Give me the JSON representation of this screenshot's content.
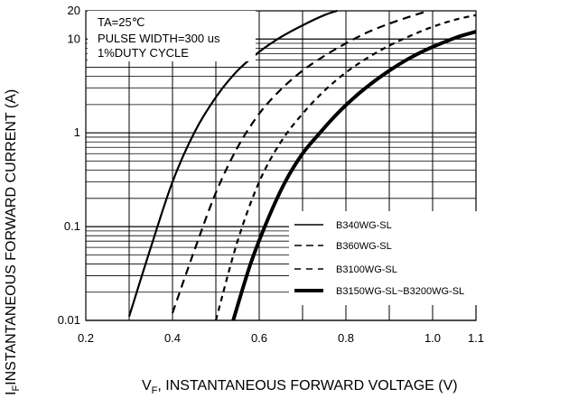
{
  "chart_data": {
    "type": "line",
    "xlabel": {
      "symbol": "V",
      "sub": "F",
      "text": ", INSTANTANEOUS FORWARD VOLTAGE (V)"
    },
    "ylabel": {
      "symbol": "I",
      "sub": "F",
      "text": "INSTANTANEOUS FORWARD CURRENT (A)"
    },
    "y_scale": "log",
    "xlim": [
      0.2,
      1.1
    ],
    "ylim": [
      0.01,
      20
    ],
    "x_ticks": [
      {
        "v": 0.2,
        "label": "0.2"
      },
      {
        "v": 0.4,
        "label": "0.4"
      },
      {
        "v": 0.6,
        "label": "0.6"
      },
      {
        "v": 0.8,
        "label": "0.8"
      },
      {
        "v": 1.0,
        "label": "1.0"
      },
      {
        "v": 1.1,
        "label": "1.1"
      }
    ],
    "y_ticks": [
      {
        "v": 0.01,
        "label": "0.01"
      },
      {
        "v": 0.1,
        "label": "0.1"
      },
      {
        "v": 1,
        "label": "1"
      },
      {
        "v": 10,
        "label": "10"
      },
      {
        "v": 20,
        "label": "20"
      }
    ],
    "grid": true,
    "conditions": [
      "TA=25℃",
      "PULSE WIDTH=300 us",
      "1%DUTY CYCLE"
    ],
    "legend_position": "bottom-right",
    "series": [
      {
        "name": "B340WG-SL",
        "style": "solid-thin",
        "x": [
          0.3,
          0.35,
          0.4,
          0.45,
          0.5,
          0.55,
          0.6,
          0.65,
          0.7,
          0.75,
          0.78
        ],
        "y": [
          0.011,
          0.06,
          0.3,
          1.0,
          2.4,
          4.6,
          7.3,
          10.5,
          14.0,
          18.0,
          20
        ]
      },
      {
        "name": "B360WG-SL",
        "style": "dashed",
        "x": [
          0.4,
          0.45,
          0.5,
          0.55,
          0.6,
          0.65,
          0.7,
          0.75,
          0.8,
          0.85,
          0.9,
          0.95,
          0.99
        ],
        "y": [
          0.012,
          0.055,
          0.23,
          0.7,
          1.6,
          2.9,
          4.6,
          6.6,
          9.0,
          11.8,
          14.6,
          17.5,
          20
        ]
      },
      {
        "name": "B3100WG-SL",
        "style": "short-dashed",
        "x": [
          0.5,
          0.55,
          0.6,
          0.65,
          0.7,
          0.75,
          0.8,
          0.85,
          0.9,
          0.95,
          1.0,
          1.05,
          1.1
        ],
        "y": [
          0.01,
          0.07,
          0.3,
          0.8,
          1.6,
          2.8,
          4.4,
          6.3,
          8.5,
          10.9,
          13.5,
          16.0,
          18.0
        ]
      },
      {
        "name": "B3150WG-SL~B3200WG-SL",
        "style": "solid-thick",
        "x": [
          0.54,
          0.58,
          0.62,
          0.66,
          0.7,
          0.74,
          0.78,
          0.82,
          0.86,
          0.9,
          0.94,
          0.98,
          1.02,
          1.06,
          1.1
        ],
        "y": [
          0.01,
          0.04,
          0.12,
          0.3,
          0.6,
          1.0,
          1.6,
          2.4,
          3.4,
          4.6,
          6.0,
          7.5,
          9.0,
          10.6,
          12.0
        ]
      }
    ]
  }
}
